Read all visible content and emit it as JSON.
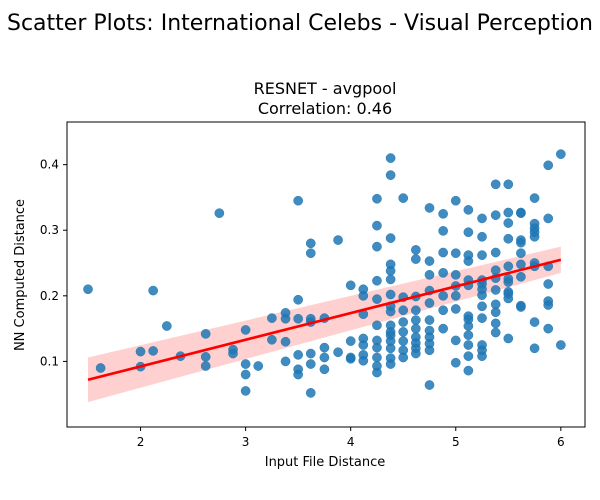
{
  "figure": {
    "suptitle": "Scatter Plots: International Celebs - Visual Perception"
  },
  "chart_data": {
    "type": "scatter",
    "title": "RESNET - avgpool",
    "subtitle": "Correlation: 0.46",
    "xlabel": "Input File Distance",
    "ylabel": "NN Computed Distance",
    "xlim": [
      1.3,
      6.23
    ],
    "ylim": [
      0.0,
      0.465
    ],
    "xticks": [
      2,
      3,
      4,
      5,
      6
    ],
    "xtick_labels": [
      "2",
      "3",
      "4",
      "5",
      "6"
    ],
    "yticks": [
      0.1,
      0.2,
      0.3,
      0.4
    ],
    "ytick_labels": [
      "0.1",
      "0.2",
      "0.3",
      "0.4"
    ],
    "grid": false,
    "legend": "none",
    "colors": {
      "points": "#1f77b4",
      "regression_line": "#ff0000",
      "confidence_band": "#ffc8c8"
    },
    "regression": {
      "x": [
        1.5,
        6.0
      ],
      "y": [
        0.072,
        0.255
      ],
      "ci_lower": [
        0.038,
        0.235
      ],
      "ci_upper": [
        0.106,
        0.275
      ]
    },
    "points": {
      "x": [
        1.5,
        1.62,
        2.0,
        2.0,
        2.12,
        2.12,
        2.25,
        2.38,
        2.62,
        2.62,
        2.62,
        2.75,
        2.88,
        2.88,
        3.0,
        3.0,
        3.0,
        3.0,
        3.12,
        3.25,
        3.25,
        3.38,
        3.38,
        3.38,
        3.38,
        3.5,
        3.5,
        3.5,
        3.5,
        3.5,
        3.5,
        3.62,
        3.62,
        3.62,
        3.62,
        3.62,
        3.62,
        3.62,
        3.75,
        3.75,
        3.75,
        3.75,
        3.88,
        3.88,
        4.0,
        4.0,
        4.0,
        4.0,
        4.12,
        4.12,
        4.12,
        4.12,
        4.12,
        4.12,
        4.12,
        4.25,
        4.25,
        4.25,
        4.25,
        4.25,
        4.25,
        4.25,
        4.25,
        4.25,
        4.25,
        4.25,
        4.38,
        4.38,
        4.38,
        4.38,
        4.38,
        4.38,
        4.38,
        4.38,
        4.38,
        4.38,
        4.38,
        4.38,
        4.38,
        4.38,
        4.38,
        4.38,
        4.5,
        4.5,
        4.5,
        4.5,
        4.5,
        4.5,
        4.5,
        4.5,
        4.62,
        4.62,
        4.62,
        4.62,
        4.62,
        4.62,
        4.62,
        4.62,
        4.62,
        4.62,
        4.75,
        4.75,
        4.75,
        4.75,
        4.75,
        4.75,
        4.75,
        4.75,
        4.75,
        4.75,
        4.75,
        4.88,
        4.88,
        4.88,
        4.88,
        4.88,
        4.88,
        4.88,
        5.0,
        5.0,
        5.0,
        5.0,
        5.0,
        5.0,
        5.0,
        5.0,
        5.12,
        5.12,
        5.12,
        5.12,
        5.12,
        5.12,
        5.12,
        5.12,
        5.12,
        5.12,
        5.12,
        5.12,
        5.12,
        5.25,
        5.25,
        5.25,
        5.25,
        5.25,
        5.25,
        5.25,
        5.25,
        5.25,
        5.25,
        5.25,
        5.25,
        5.38,
        5.38,
        5.38,
        5.38,
        5.38,
        5.38,
        5.38,
        5.38,
        5.38,
        5.38,
        5.5,
        5.5,
        5.5,
        5.5,
        5.5,
        5.5,
        5.5,
        5.5,
        5.5,
        5.5,
        5.5,
        5.62,
        5.62,
        5.62,
        5.62,
        5.62,
        5.62,
        5.62,
        5.62,
        5.62,
        5.75,
        5.75,
        5.75,
        5.75,
        5.75,
        5.75,
        5.75,
        5.75,
        5.75,
        5.88,
        5.88,
        5.88,
        5.88,
        5.88,
        5.88,
        5.88,
        6.0,
        6.0
      ],
      "y": [
        0.21,
        0.09,
        0.092,
        0.115,
        0.208,
        0.116,
        0.154,
        0.108,
        0.093,
        0.107,
        0.142,
        0.326,
        0.112,
        0.118,
        0.148,
        0.096,
        0.08,
        0.055,
        0.093,
        0.166,
        0.133,
        0.174,
        0.165,
        0.13,
        0.1,
        0.345,
        0.194,
        0.165,
        0.11,
        0.088,
        0.08,
        0.28,
        0.265,
        0.165,
        0.16,
        0.112,
        0.096,
        0.052,
        0.166,
        0.121,
        0.106,
        0.088,
        0.285,
        0.114,
        0.216,
        0.131,
        0.106,
        0.104,
        0.21,
        0.2,
        0.172,
        0.135,
        0.125,
        0.11,
        0.101,
        0.348,
        0.307,
        0.275,
        0.223,
        0.195,
        0.155,
        0.132,
        0.121,
        0.106,
        0.093,
        0.083,
        0.41,
        0.384,
        0.288,
        0.248,
        0.238,
        0.225,
        0.202,
        0.184,
        0.176,
        0.155,
        0.145,
        0.14,
        0.131,
        0.12,
        0.105,
        0.096,
        0.349,
        0.198,
        0.178,
        0.16,
        0.145,
        0.131,
        0.117,
        0.106,
        0.27,
        0.256,
        0.199,
        0.178,
        0.163,
        0.15,
        0.137,
        0.128,
        0.12,
        0.112,
        0.334,
        0.253,
        0.232,
        0.208,
        0.189,
        0.163,
        0.147,
        0.137,
        0.127,
        0.117,
        0.064,
        0.325,
        0.299,
        0.266,
        0.235,
        0.2,
        0.178,
        0.15,
        0.345,
        0.265,
        0.232,
        0.215,
        0.2,
        0.18,
        0.132,
        0.098,
        0.331,
        0.297,
        0.262,
        0.253,
        0.224,
        0.216,
        0.169,
        0.164,
        0.154,
        0.14,
        0.125,
        0.108,
        0.086,
        0.318,
        0.29,
        0.262,
        0.224,
        0.218,
        0.21,
        0.201,
        0.184,
        0.166,
        0.125,
        0.117,
        0.108,
        0.37,
        0.323,
        0.266,
        0.239,
        0.227,
        0.209,
        0.187,
        0.175,
        0.158,
        0.144,
        0.37,
        0.327,
        0.311,
        0.287,
        0.245,
        0.226,
        0.221,
        0.206,
        0.203,
        0.196,
        0.135,
        0.327,
        0.326,
        0.285,
        0.281,
        0.265,
        0.248,
        0.229,
        0.185,
        0.183,
        0.349,
        0.31,
        0.303,
        0.297,
        0.29,
        0.25,
        0.245,
        0.16,
        0.12,
        0.399,
        0.318,
        0.245,
        0.218,
        0.192,
        0.186,
        0.15,
        0.416,
        0.125
      ]
    }
  }
}
